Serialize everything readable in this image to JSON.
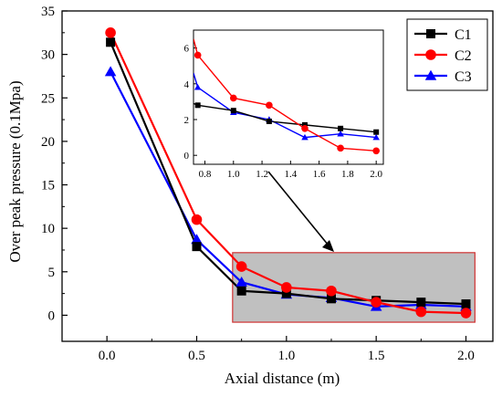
{
  "chart_data": {
    "type": "line",
    "xlabel": "Axial distance (m)",
    "ylabel": "Over peak pressure (0.1Mpa)",
    "xlim": [
      -0.25,
      2.15
    ],
    "ylim": [
      -3,
      35
    ],
    "xticks": [
      "0.0",
      "0.5",
      "1.0",
      "1.5",
      "2.0"
    ],
    "yticks": [
      "0",
      "5",
      "10",
      "15",
      "20",
      "25",
      "30",
      "35"
    ],
    "legend_position": "top-right",
    "series": [
      {
        "name": "C1",
        "color": "#000000",
        "marker": "square",
        "x": [
          0.02,
          0.5,
          0.75,
          1.0,
          1.25,
          1.5,
          1.75,
          2.0
        ],
        "y": [
          31.4,
          7.9,
          2.8,
          2.5,
          1.9,
          1.7,
          1.5,
          1.3
        ]
      },
      {
        "name": "C2",
        "color": "#ff0000",
        "marker": "circle",
        "x": [
          0.02,
          0.5,
          0.75,
          1.0,
          1.25,
          1.5,
          1.75,
          2.0
        ],
        "y": [
          32.5,
          11.0,
          5.6,
          3.2,
          2.8,
          1.5,
          0.4,
          0.25
        ]
      },
      {
        "name": "C3",
        "color": "#0000ff",
        "marker": "triangle",
        "x": [
          0.02,
          0.5,
          0.75,
          1.0,
          1.25,
          1.5,
          1.75,
          2.0
        ],
        "y": [
          28.0,
          8.7,
          3.8,
          2.4,
          2.0,
          1.0,
          1.2,
          1.0
        ]
      }
    ],
    "highlight_region": {
      "x": [
        0.7,
        2.05
      ],
      "y": [
        -0.8,
        7.2
      ],
      "fill": "#c0c0c0",
      "stroke": "#d03030"
    },
    "inset": {
      "xlim": [
        0.72,
        2.05
      ],
      "ylim": [
        -0.5,
        7.0
      ],
      "xticks": [
        "0.8",
        "1.0",
        "1.2",
        "1.4",
        "1.6",
        "1.8",
        "2.0"
      ],
      "yticks": [
        "0",
        "2",
        "4",
        "6"
      ],
      "x_start": 0.72,
      "series_start": {
        "C1": 2.9,
        "C2": 6.5,
        "C3": 4.6
      }
    }
  }
}
